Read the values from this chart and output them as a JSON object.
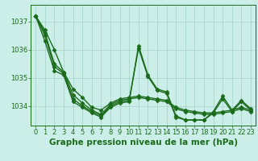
{
  "background_color": "#cceee8",
  "grid_color": "#aad4cc",
  "line_color": "#1a6b1a",
  "marker": "D",
  "markersize": 2.5,
  "linewidth": 1.0,
  "xlabel": "Graphe pression niveau de la mer (hPa)",
  "xlabel_fontsize": 7.5,
  "tick_fontsize": 6.0,
  "xlim": [
    -0.5,
    23.5
  ],
  "ylim": [
    1033.3,
    1037.6
  ],
  "yticks": [
    1034,
    1035,
    1036,
    1037
  ],
  "xticks": [
    0,
    1,
    2,
    3,
    4,
    5,
    6,
    7,
    8,
    9,
    10,
    11,
    12,
    13,
    14,
    15,
    16,
    17,
    18,
    19,
    20,
    21,
    22,
    23
  ],
  "series": [
    [
      1037.2,
      1036.7,
      1036.0,
      1035.2,
      1034.6,
      1034.3,
      1033.95,
      1033.85,
      1034.1,
      1034.25,
      1034.3,
      1034.35,
      1034.3,
      1034.25,
      1034.2,
      1033.95,
      1033.85,
      1033.8,
      1033.75,
      1033.75,
      1033.8,
      1033.85,
      1033.95,
      1033.85
    ],
    [
      1037.2,
      1036.6,
      1035.5,
      1035.2,
      1034.4,
      1034.1,
      1033.85,
      1033.7,
      1034.05,
      1034.2,
      1034.25,
      1034.3,
      1034.25,
      1034.2,
      1034.15,
      1033.9,
      1033.8,
      1033.75,
      1033.7,
      1033.7,
      1033.75,
      1033.8,
      1033.9,
      1033.8
    ],
    [
      1037.2,
      1036.5,
      1035.4,
      1035.15,
      1034.25,
      1034.0,
      1033.8,
      1033.65,
      1034.0,
      1034.15,
      1034.2,
      1036.05,
      1035.05,
      1034.55,
      1034.45,
      1033.6,
      1033.5,
      1033.5,
      1033.5,
      1033.75,
      1034.25,
      1033.8,
      1034.15,
      1033.85
    ],
    [
      1037.2,
      1036.3,
      1035.25,
      1035.1,
      1034.15,
      1033.95,
      1033.75,
      1033.6,
      1033.95,
      1034.1,
      1034.15,
      1036.15,
      1035.1,
      1034.6,
      1034.5,
      1033.65,
      1033.5,
      1033.5,
      1033.5,
      1033.8,
      1034.35,
      1033.85,
      1034.2,
      1033.9
    ]
  ]
}
